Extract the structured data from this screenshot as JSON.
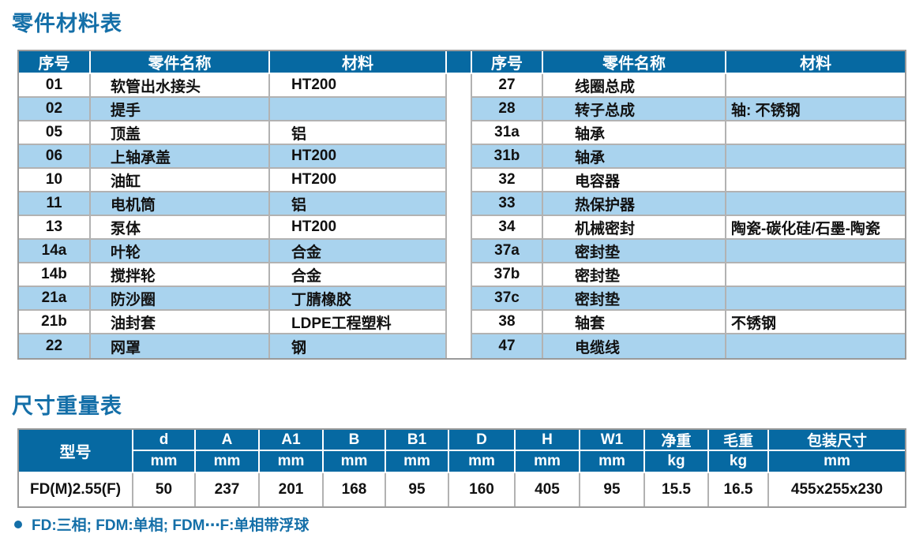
{
  "parts_table": {
    "title": "零件材料表",
    "headers": {
      "no": "序号",
      "name": "零件名称",
      "material": "材料"
    },
    "left_rows": [
      {
        "no": "01",
        "name": "软管出水接头",
        "material": "HT200"
      },
      {
        "no": "02",
        "name": "提手",
        "material": ""
      },
      {
        "no": "05",
        "name": "顶盖",
        "material": "铝"
      },
      {
        "no": "06",
        "name": "上轴承盖",
        "material": "HT200"
      },
      {
        "no": "10",
        "name": "油缸",
        "material": "HT200"
      },
      {
        "no": "11",
        "name": "电机筒",
        "material": "铝"
      },
      {
        "no": "13",
        "name": "泵体",
        "material": "HT200"
      },
      {
        "no": "14a",
        "name": "叶轮",
        "material": "合金"
      },
      {
        "no": "14b",
        "name": "搅拌轮",
        "material": "合金"
      },
      {
        "no": "21a",
        "name": "防沙圈",
        "material": "丁腈橡胶"
      },
      {
        "no": "21b",
        "name": "油封套",
        "material": "LDPE工程塑料"
      },
      {
        "no": "22",
        "name": "网罩",
        "material": "钢"
      }
    ],
    "right_rows": [
      {
        "no": "27",
        "name": "线圈总成",
        "material": ""
      },
      {
        "no": "28",
        "name": "转子总成",
        "material": "轴: 不锈钢"
      },
      {
        "no": "31a",
        "name": "轴承",
        "material": ""
      },
      {
        "no": "31b",
        "name": "轴承",
        "material": ""
      },
      {
        "no": "32",
        "name": "电容器",
        "material": ""
      },
      {
        "no": "33",
        "name": "热保护器",
        "material": ""
      },
      {
        "no": "34",
        "name": "机械密封",
        "material": "陶瓷-碳化硅/石墨-陶瓷"
      },
      {
        "no": "37a",
        "name": "密封垫",
        "material": ""
      },
      {
        "no": "37b",
        "name": "密封垫",
        "material": ""
      },
      {
        "no": "37c",
        "name": "密封垫",
        "material": ""
      },
      {
        "no": "38",
        "name": "轴套",
        "material": "不锈钢"
      },
      {
        "no": "47",
        "name": "电缆线",
        "material": ""
      }
    ]
  },
  "size_table": {
    "title": "尺寸重量表",
    "model_header": "型号",
    "columns": [
      {
        "label": "d",
        "unit": "mm"
      },
      {
        "label": "A",
        "unit": "mm"
      },
      {
        "label": "A1",
        "unit": "mm"
      },
      {
        "label": "B",
        "unit": "mm"
      },
      {
        "label": "B1",
        "unit": "mm"
      },
      {
        "label": "D",
        "unit": "mm"
      },
      {
        "label": "H",
        "unit": "mm"
      },
      {
        "label": "W1",
        "unit": "mm"
      },
      {
        "label": "净重",
        "unit": "kg"
      },
      {
        "label": "毛重",
        "unit": "kg"
      },
      {
        "label": "包装尺寸",
        "unit": "mm"
      }
    ],
    "row": {
      "model": "FD(M)2.55(F)",
      "values": [
        "50",
        "237",
        "201",
        "168",
        "95",
        "160",
        "405",
        "95",
        "15.5",
        "16.5",
        "455x255x230"
      ]
    }
  },
  "footnote": {
    "text": "FD:三相; FDM:单相; FDM⋯F:单相带浮球"
  },
  "colors": {
    "header_blue": "#0669A2",
    "stripe_blue": "#A9D3EE",
    "title_blue": "#146FA8",
    "border_gray": "#B2B2B2"
  }
}
